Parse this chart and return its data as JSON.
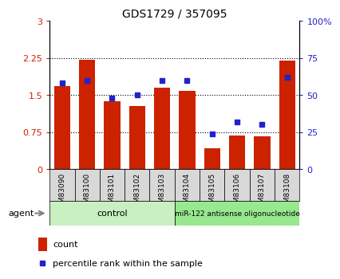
{
  "title": "GDS1729 / 357095",
  "samples": [
    "GSM83090",
    "GSM83100",
    "GSM83101",
    "GSM83102",
    "GSM83103",
    "GSM83104",
    "GSM83105",
    "GSM83106",
    "GSM83107",
    "GSM83108"
  ],
  "counts": [
    1.68,
    2.21,
    1.38,
    1.28,
    1.65,
    1.58,
    0.42,
    0.68,
    0.67,
    2.19
  ],
  "percentile": [
    58,
    60,
    48,
    50,
    60,
    60,
    24,
    32,
    30,
    62
  ],
  "ylim_left": [
    0,
    3
  ],
  "ylim_right": [
    0,
    100
  ],
  "yticks_left": [
    0,
    0.75,
    1.5,
    2.25,
    3
  ],
  "yticks_right": [
    0,
    25,
    50,
    75,
    100
  ],
  "ytick_labels_left": [
    "0",
    "0.75",
    "1.5",
    "2.25",
    "3"
  ],
  "ytick_labels_right": [
    "0",
    "25",
    "50",
    "75",
    "100%"
  ],
  "bar_color": "#cc2200",
  "dot_color": "#2222cc",
  "bg_color": "#d8d8d8",
  "control_color": "#c8f0c0",
  "treatment_color": "#98e890",
  "control_label": "control",
  "treatment_label": "miR-122 antisense oligonucleotide",
  "control_samples": 5,
  "treatment_samples": 5,
  "legend_count": "count",
  "legend_percentile": "percentile rank within the sample",
  "agent_label": "agent",
  "grid_yticks": [
    0.75,
    1.5,
    2.25
  ],
  "bar_width": 0.65
}
